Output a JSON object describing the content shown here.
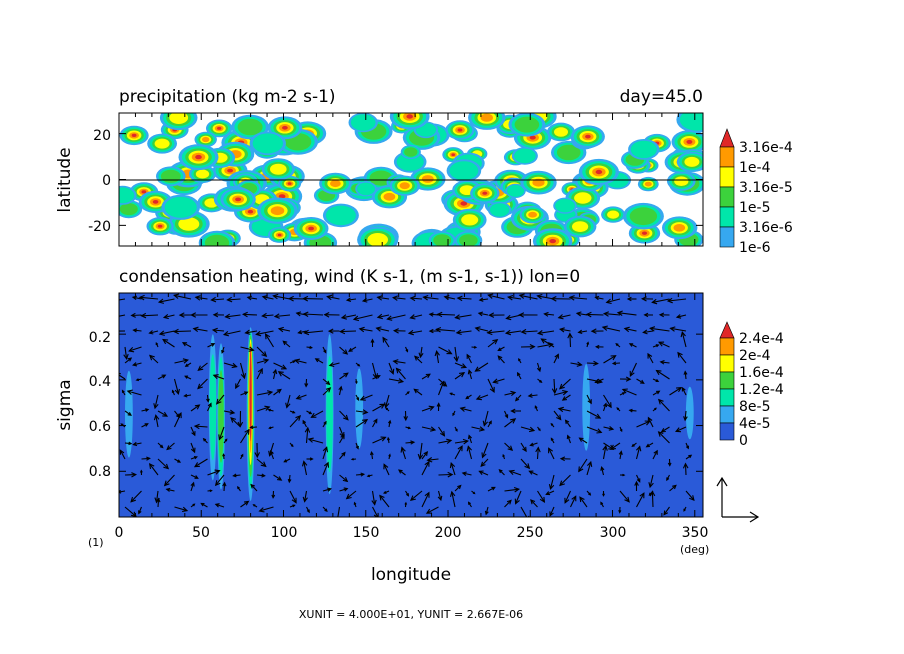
{
  "chart_data": [
    {
      "type": "heatmap",
      "title": "precipitation (kg m-2 s-1)",
      "annotation": "day=45.0",
      "ylabel": "latitude",
      "xlim": [
        0,
        355
      ],
      "ylim": [
        -29,
        29
      ],
      "yticks": [
        "20",
        "0",
        "-20"
      ],
      "ytick_values": [
        20,
        0,
        -20
      ],
      "legend": {
        "labels": [
          "3.16e-4",
          "1e-4",
          "3.16e-5",
          "1e-5",
          "3.16e-6",
          "1e-6"
        ],
        "colors": [
          "#ff9a00",
          "#ffff00",
          "#3cd23c",
          "#00e6aa",
          "#36a8f0",
          "#ffffff"
        ],
        "top_color": "#e02828"
      }
    },
    {
      "type": "heatmap",
      "title": "condensation heating, wind (K s-1, (m s-1, s-1)) lon=0",
      "ylabel": "sigma",
      "xlabel": "longitude",
      "xlim": [
        0,
        355
      ],
      "ylim": [
        0.02,
        1.0
      ],
      "yaxis_inverted": true,
      "yticks": [
        "0.2",
        "0.4",
        "0.6",
        "0.8"
      ],
      "ytick_values": [
        0.2,
        0.4,
        0.6,
        0.8
      ],
      "xticks": [
        "0",
        "50",
        "100",
        "150",
        "200",
        "250",
        "300",
        "350"
      ],
      "xtick_values": [
        0,
        50,
        100,
        150,
        200,
        250,
        300,
        350
      ],
      "x_unit": "(deg)",
      "page_label": "(1)",
      "legend": {
        "labels": [
          "2.4e-4",
          "2e-4",
          "1.6e-4",
          "1.2e-4",
          "8e-5",
          "4e-5",
          "0"
        ],
        "colors": [
          "#ff9a00",
          "#ffff00",
          "#3cd23c",
          "#00e6aa",
          "#36a8f0",
          "#2a5ad8"
        ],
        "top_color": "#e02828"
      },
      "background_color": "#2a5ad8",
      "heating_columns": [
        {
          "lon": 6,
          "sigma_top": 0.36,
          "sigma_bottom": 0.74,
          "max_level": 1
        },
        {
          "lon": 57,
          "sigma_top": 0.2,
          "sigma_bottom": 0.84,
          "max_level": 2
        },
        {
          "lon": 62,
          "sigma_top": 0.24,
          "sigma_bottom": 0.88,
          "max_level": 3
        },
        {
          "lon": 80,
          "sigma_top": 0.17,
          "sigma_bottom": 0.93,
          "max_level": 6
        },
        {
          "lon": 128,
          "sigma_top": 0.2,
          "sigma_bottom": 0.9,
          "max_level": 2
        },
        {
          "lon": 146,
          "sigma_top": 0.35,
          "sigma_bottom": 0.7,
          "max_level": 1
        },
        {
          "lon": 284,
          "sigma_top": 0.33,
          "sigma_bottom": 0.71,
          "max_level": 1
        },
        {
          "lon": 347,
          "sigma_top": 0.43,
          "sigma_bottom": 0.66,
          "max_level": 1
        }
      ]
    }
  ],
  "footer": {
    "units_text": "XUNIT = 4.000E+01, YUNIT = 2.667E-06"
  }
}
